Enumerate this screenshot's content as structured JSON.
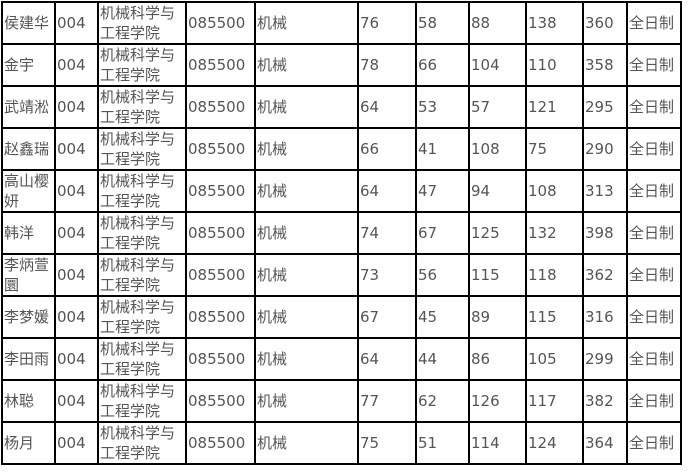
{
  "rows": [
    [
      "侯建华",
      "004",
      "机械科学与工程学院",
      "085500",
      "机械",
      "76",
      "58",
      "88",
      "138",
      "360",
      "全日制"
    ],
    [
      "金宇",
      "004",
      "机械科学与工程学院",
      "085500",
      "机械",
      "78",
      "66",
      "104",
      "110",
      "358",
      "全日制"
    ],
    [
      "武靖淞",
      "004",
      "机械科学与工程学院",
      "085500",
      "机械",
      "64",
      "53",
      "57",
      "121",
      "295",
      "全日制"
    ],
    [
      "赵鑫瑞",
      "004",
      "机械科学与工程学院",
      "085500",
      "机械",
      "66",
      "41",
      "108",
      "75",
      "290",
      "全日制"
    ],
    [
      "高山樱妍",
      "004",
      "机械科学与工程学院",
      "085500",
      "机械",
      "64",
      "47",
      "94",
      "108",
      "313",
      "全日制"
    ],
    [
      "韩洋",
      "004",
      "机械科学与工程学院",
      "085500",
      "机械",
      "74",
      "67",
      "125",
      "132",
      "398",
      "全日制"
    ],
    [
      "李炳萱圜",
      "004",
      "机械科学与工程学院",
      "085500",
      "机械",
      "73",
      "56",
      "115",
      "118",
      "362",
      "全日制"
    ],
    [
      "李梦媛",
      "004",
      "机械科学与工程学院",
      "085500",
      "机械",
      "67",
      "45",
      "89",
      "115",
      "316",
      "全日制"
    ],
    [
      "李田雨",
      "004",
      "机械科学与工程学院",
      "085500",
      "机械",
      "64",
      "44",
      "86",
      "105",
      "299",
      "全日制"
    ],
    [
      "林聪",
      "004",
      "机械科学与工程学院",
      "085500",
      "机械",
      "77",
      "62",
      "126",
      "117",
      "382",
      "全日制"
    ],
    [
      "杨月",
      "004",
      "机械科学与工程学院",
      "085500",
      "机械",
      "75",
      "51",
      "114",
      "124",
      "364",
      "全日制"
    ]
  ]
}
